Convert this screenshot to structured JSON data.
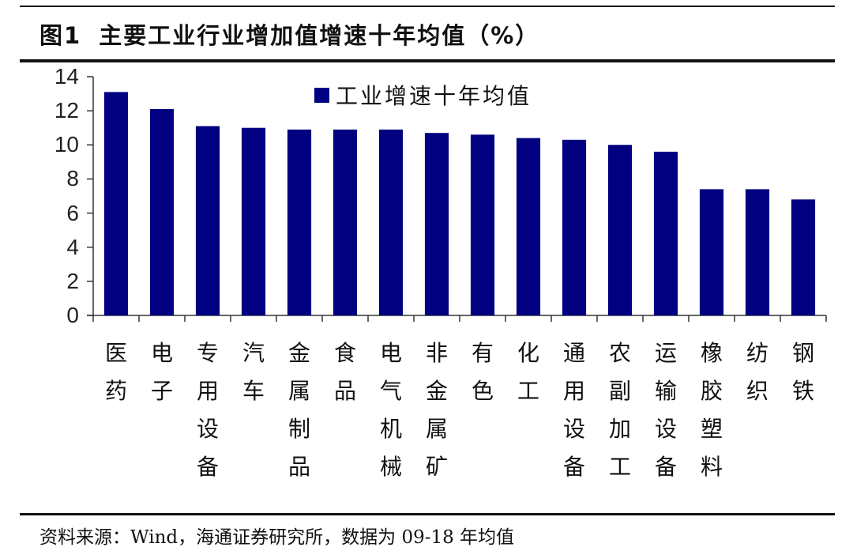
{
  "title": {
    "figure_number": "图1",
    "text": "主要工业行业增加值增速十年均值（%）"
  },
  "legend": {
    "swatch_color": "#000080",
    "label": "工业增速十年均值"
  },
  "footer": {
    "source": "资料来源：Wind，海通证券研究所，数据为 09-18 年均值"
  },
  "chart_data": {
    "type": "bar",
    "title": "主要工业行业增加值增速十年均值（%）",
    "xlabel": "",
    "ylabel": "",
    "ylim": [
      0,
      14
    ],
    "yticks": [
      0,
      2,
      4,
      6,
      8,
      10,
      12,
      14
    ],
    "grid": false,
    "legend_position": "top-center",
    "bar_color": "#000080",
    "categories": [
      "医药",
      "电子",
      "专用设备",
      "汽车",
      "金属制品",
      "食品",
      "电气机械",
      "非金属矿",
      "有色",
      "化工",
      "通用设备",
      "农副加工",
      "运输设备",
      "橡胶塑料",
      "纺织",
      "钢铁"
    ],
    "series": [
      {
        "name": "工业增速十年均值",
        "values": [
          13.1,
          12.1,
          11.1,
          11.0,
          10.9,
          10.9,
          10.9,
          10.7,
          10.6,
          10.4,
          10.3,
          10.0,
          9.6,
          7.4,
          7.4,
          6.8
        ]
      }
    ],
    "source": "资料来源：Wind，海通证券研究所，数据为 09-18 年均值"
  }
}
